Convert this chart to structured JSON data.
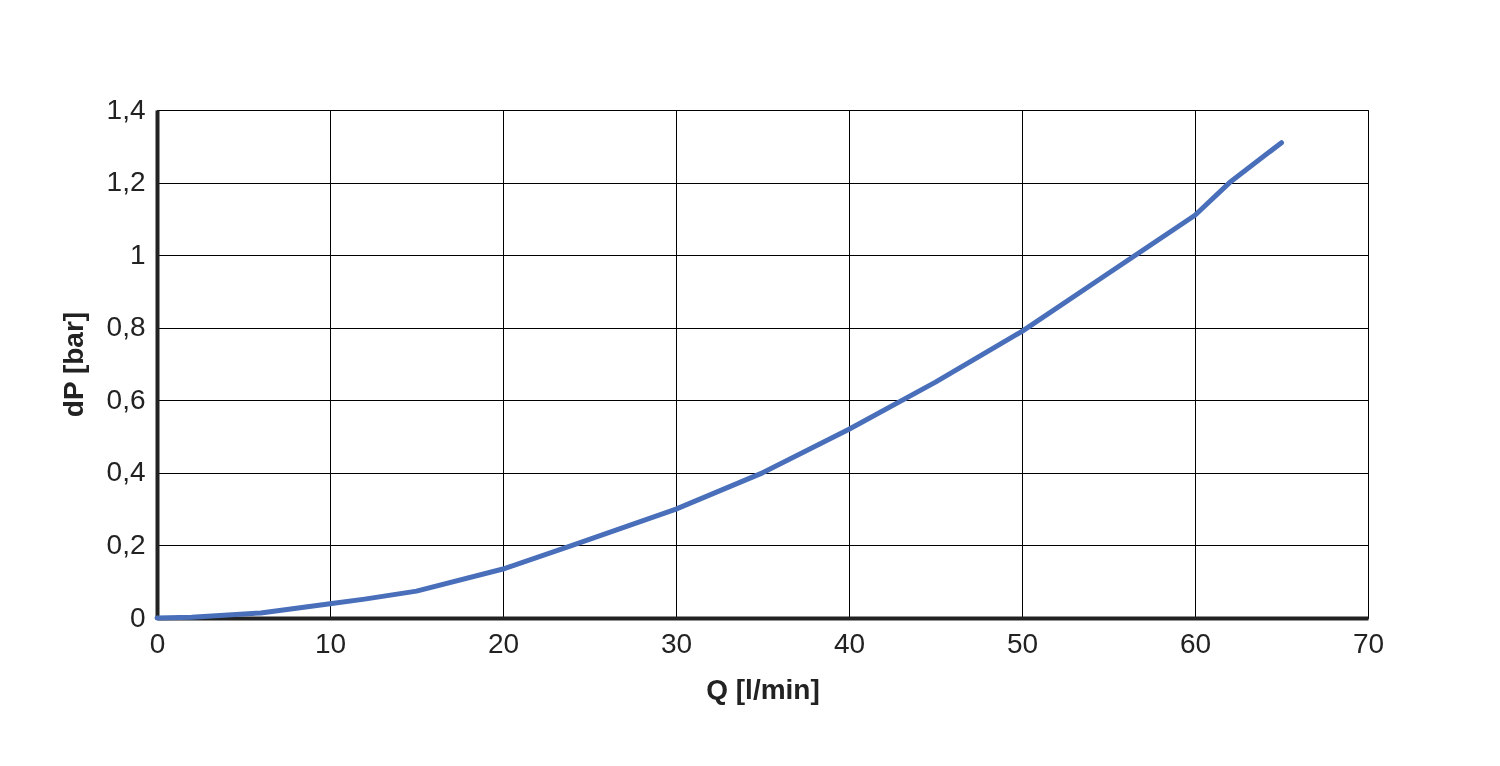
{
  "chart_data": {
    "type": "line",
    "xlabel": "Q [l/min]",
    "ylabel": "dP [bar]",
    "x": [
      0,
      2,
      6,
      10,
      12,
      15,
      20,
      24,
      30,
      35,
      40,
      45,
      50,
      55,
      60,
      62,
      65
    ],
    "series": [
      {
        "color": "#4a6fba",
        "values": [
          0,
          0.002,
          0.014,
          0.039,
          0.052,
          0.074,
          0.135,
          0.2,
          0.3,
          0.4,
          0.52,
          0.65,
          0.79,
          0.95,
          1.11,
          1.2,
          1.31
        ]
      }
    ],
    "xlim": [
      0,
      70
    ],
    "xticks": [
      0,
      10,
      20,
      30,
      40,
      50,
      60,
      70
    ],
    "ylim": [
      0,
      1.4
    ],
    "yticks": [
      0,
      {
        "value": 0.2,
        "label": "0,2"
      },
      {
        "value": 0.4,
        "label": "0,4"
      },
      {
        "value": 0.6,
        "label": "0,6"
      },
      {
        "value": 0.8,
        "label": "0,8"
      },
      1,
      {
        "value": 1.2,
        "label": "1,2"
      },
      {
        "value": 1.4,
        "label": "1,4"
      }
    ],
    "grid": true,
    "marker": "none",
    "line_style": "solid",
    "legend": false
  }
}
